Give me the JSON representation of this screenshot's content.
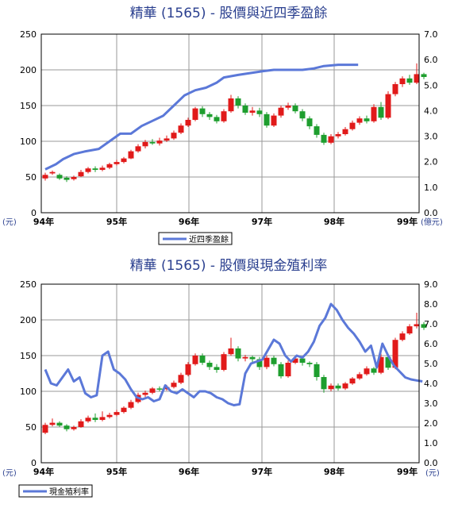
{
  "chart_data": [
    {
      "type": "candlestick+line",
      "title": "精華 (1565) - 股價與近四季盈餘",
      "x_labels": [
        "94年",
        "95年",
        "96年",
        "97年",
        "98年",
        "99年"
      ],
      "y_left": {
        "unit": "(元)",
        "range": [
          0,
          250
        ],
        "ticks": [
          "0",
          "50",
          "100",
          "150",
          "200",
          "250"
        ]
      },
      "y_right": {
        "unit": "(億元)",
        "range": [
          0,
          7
        ],
        "ticks": [
          "0.0",
          "1.0",
          "2.0",
          "3.0",
          "4.0",
          "5.0",
          "6.0",
          "7.0"
        ]
      },
      "legend": "近四季盈餘",
      "colors": {
        "up": "#e11a1a",
        "down": "#1e9e2e",
        "line": "#5b78d8"
      },
      "line_series": {
        "name": "近四季盈餘",
        "points": [
          [
            0.0,
            1.7
          ],
          [
            1.5,
            1.9
          ],
          [
            2.5,
            2.1
          ],
          [
            4.0,
            2.3
          ],
          [
            5.5,
            2.4
          ],
          [
            7.5,
            2.5
          ],
          [
            9.0,
            2.8
          ],
          [
            10.5,
            3.1
          ],
          [
            12.0,
            3.1
          ],
          [
            13.5,
            3.4
          ],
          [
            15.0,
            3.6
          ],
          [
            16.5,
            3.8
          ],
          [
            18.0,
            4.2
          ],
          [
            19.5,
            4.6
          ],
          [
            21.0,
            4.8
          ],
          [
            22.5,
            4.9
          ],
          [
            24.0,
            5.1
          ],
          [
            25.0,
            5.3
          ],
          [
            27.0,
            5.4
          ],
          [
            30.5,
            5.55
          ],
          [
            32.0,
            5.6
          ],
          [
            34.0,
            5.6
          ],
          [
            36.0,
            5.6
          ],
          [
            37.5,
            5.65
          ],
          [
            39.0,
            5.75
          ],
          [
            41.0,
            5.8
          ],
          [
            42.5,
            5.8
          ],
          [
            43.8,
            5.8
          ]
        ]
      },
      "candles": [
        [
          0,
          48,
          53,
          45,
          56
        ],
        [
          1,
          55,
          57,
          53,
          59
        ],
        [
          2,
          53,
          48,
          46,
          55
        ],
        [
          3,
          49,
          46,
          43,
          51
        ],
        [
          4,
          47,
          50,
          45,
          52
        ],
        [
          5,
          51,
          57,
          50,
          60
        ],
        [
          6,
          57,
          62,
          55,
          64
        ],
        [
          7,
          62,
          60,
          57,
          65
        ],
        [
          8,
          60,
          63,
          58,
          66
        ],
        [
          9,
          63,
          68,
          61,
          70
        ],
        [
          10,
          68,
          71,
          66,
          74
        ],
        [
          11,
          71,
          76,
          69,
          78
        ],
        [
          12,
          76,
          86,
          75,
          88
        ],
        [
          13,
          86,
          93,
          84,
          96
        ],
        [
          14,
          93,
          99,
          90,
          102
        ],
        [
          15,
          99,
          97,
          95,
          103
        ],
        [
          16,
          97,
          101,
          94,
          105
        ],
        [
          17,
          101,
          104,
          99,
          108
        ],
        [
          18,
          104,
          112,
          102,
          115
        ],
        [
          19,
          112,
          122,
          110,
          125
        ],
        [
          20,
          122,
          130,
          120,
          133
        ],
        [
          21,
          130,
          146,
          128,
          148
        ],
        [
          22,
          146,
          138,
          134,
          149
        ],
        [
          23,
          138,
          134,
          130,
          141
        ],
        [
          24,
          134,
          128,
          125,
          137
        ],
        [
          25,
          128,
          142,
          126,
          145
        ],
        [
          26,
          142,
          160,
          140,
          165
        ],
        [
          27,
          160,
          150,
          146,
          163
        ],
        [
          28,
          150,
          140,
          137,
          153
        ],
        [
          29,
          140,
          143,
          136,
          148
        ],
        [
          30,
          143,
          138,
          134,
          147
        ],
        [
          31,
          138,
          122,
          119,
          141
        ],
        [
          32,
          122,
          136,
          120,
          139
        ],
        [
          33,
          136,
          147,
          133,
          150
        ],
        [
          34,
          147,
          150,
          144,
          154
        ],
        [
          35,
          150,
          142,
          139,
          153
        ],
        [
          36,
          142,
          132,
          128,
          145
        ],
        [
          37,
          132,
          121,
          117,
          135
        ],
        [
          38,
          121,
          109,
          105,
          124
        ],
        [
          39,
          109,
          98,
          95,
          112
        ],
        [
          40,
          98,
          107,
          96,
          110
        ],
        [
          41,
          107,
          110,
          104,
          113
        ],
        [
          42,
          110,
          117,
          108,
          120
        ],
        [
          43,
          117,
          126,
          115,
          129
        ],
        [
          44,
          126,
          132,
          123,
          135
        ],
        [
          45,
          132,
          128,
          125,
          136
        ],
        [
          46,
          128,
          148,
          126,
          152
        ],
        [
          47,
          148,
          133,
          130,
          155
        ],
        [
          48,
          133,
          166,
          131,
          170
        ],
        [
          49,
          166,
          180,
          163,
          183
        ],
        [
          50,
          180,
          188,
          176,
          191
        ],
        [
          51,
          188,
          182,
          179,
          193
        ],
        [
          52,
          182,
          194,
          180,
          209
        ],
        [
          53,
          194,
          190,
          187,
          196
        ]
      ]
    },
    {
      "type": "candlestick+line",
      "title": "精華 (1565) - 股價與現金殖利率",
      "x_labels": [
        "94年",
        "95年",
        "96年",
        "97年",
        "98年",
        "99年"
      ],
      "y_left": {
        "unit": "(元)",
        "range": [
          0,
          250
        ],
        "ticks": [
          "0",
          "50",
          "100",
          "150",
          "200",
          "250"
        ]
      },
      "y_right": {
        "unit": "(元)",
        "range": [
          0,
          9
        ],
        "ticks": [
          "0.0",
          "1.0",
          "2.0",
          "3.0",
          "4.0",
          "5.0",
          "6.0",
          "7.0",
          "8.0",
          "9.0"
        ]
      },
      "legend": "現金殖利率",
      "colors": {
        "up": "#e11a1a",
        "down": "#1e9e2e",
        "line": "#5b78d8"
      },
      "line_series": {
        "name": "現金殖利率",
        "points": [
          [
            0.0,
            4.7
          ],
          [
            0.8,
            4.0
          ],
          [
            1.6,
            3.9
          ],
          [
            2.4,
            4.3
          ],
          [
            3.2,
            4.7
          ],
          [
            4.0,
            4.1
          ],
          [
            4.8,
            4.3
          ],
          [
            5.6,
            3.5
          ],
          [
            6.4,
            3.3
          ],
          [
            7.2,
            3.4
          ],
          [
            8.0,
            5.4
          ],
          [
            8.8,
            5.6
          ],
          [
            9.6,
            4.7
          ],
          [
            10.4,
            4.5
          ],
          [
            11.2,
            4.2
          ],
          [
            12.0,
            3.7
          ],
          [
            12.8,
            3.3
          ],
          [
            13.6,
            3.2
          ],
          [
            14.4,
            3.3
          ],
          [
            15.2,
            3.1
          ],
          [
            16.0,
            3.2
          ],
          [
            16.8,
            3.9
          ],
          [
            17.6,
            3.6
          ],
          [
            18.4,
            3.5
          ],
          [
            19.2,
            3.7
          ],
          [
            20.0,
            3.5
          ],
          [
            20.8,
            3.3
          ],
          [
            21.6,
            3.6
          ],
          [
            22.4,
            3.6
          ],
          [
            23.2,
            3.5
          ],
          [
            24.0,
            3.3
          ],
          [
            24.8,
            3.2
          ],
          [
            25.6,
            3.0
          ],
          [
            26.4,
            2.9
          ],
          [
            27.2,
            2.95
          ],
          [
            28.0,
            4.5
          ],
          [
            28.8,
            5.0
          ],
          [
            29.6,
            5.1
          ],
          [
            30.4,
            5.2
          ],
          [
            31.2,
            5.7
          ],
          [
            32.0,
            6.2
          ],
          [
            32.8,
            6.0
          ],
          [
            33.6,
            5.4
          ],
          [
            34.4,
            5.1
          ],
          [
            35.2,
            5.4
          ],
          [
            36.0,
            5.3
          ],
          [
            36.8,
            5.6
          ],
          [
            37.6,
            6.1
          ],
          [
            38.4,
            6.9
          ],
          [
            39.2,
            7.3
          ],
          [
            40.0,
            8.0
          ],
          [
            40.8,
            7.7
          ],
          [
            41.6,
            7.2
          ],
          [
            42.4,
            6.8
          ],
          [
            43.2,
            6.5
          ],
          [
            44.0,
            6.1
          ],
          [
            44.8,
            5.6
          ],
          [
            45.6,
            5.9
          ],
          [
            46.4,
            4.8
          ],
          [
            47.2,
            6.0
          ],
          [
            48.0,
            5.4
          ],
          [
            48.8,
            4.9
          ],
          [
            49.6,
            4.6
          ],
          [
            50.4,
            4.3
          ],
          [
            51.2,
            4.2
          ],
          [
            52.0,
            4.15
          ],
          [
            52.8,
            4.1
          ]
        ]
      },
      "candles": [
        [
          0,
          42,
          53,
          40,
          56
        ],
        [
          1,
          53,
          56,
          51,
          62
        ],
        [
          2,
          56,
          52,
          50,
          58
        ],
        [
          3,
          52,
          47,
          44,
          54
        ],
        [
          4,
          47,
          50,
          45,
          52
        ],
        [
          5,
          50,
          58,
          49,
          61
        ],
        [
          6,
          58,
          63,
          56,
          66
        ],
        [
          7,
          63,
          60,
          57,
          69
        ],
        [
          8,
          60,
          64,
          58,
          72
        ],
        [
          9,
          64,
          67,
          62,
          70
        ],
        [
          10,
          67,
          71,
          65,
          74
        ],
        [
          11,
          71,
          77,
          69,
          79
        ],
        [
          12,
          77,
          85,
          75,
          88
        ],
        [
          13,
          85,
          95,
          83,
          98
        ],
        [
          14,
          95,
          98,
          92,
          101
        ],
        [
          15,
          98,
          104,
          96,
          106
        ],
        [
          16,
          104,
          103,
          100,
          107
        ],
        [
          17,
          103,
          106,
          101,
          109
        ],
        [
          18,
          106,
          112,
          104,
          115
        ],
        [
          19,
          112,
          123,
          110,
          126
        ],
        [
          20,
          123,
          138,
          121,
          141
        ],
        [
          21,
          138,
          150,
          136,
          153
        ],
        [
          22,
          150,
          140,
          137,
          153
        ],
        [
          23,
          140,
          134,
          130,
          143
        ],
        [
          24,
          134,
          130,
          126,
          138
        ],
        [
          25,
          130,
          152,
          128,
          155
        ],
        [
          26,
          152,
          160,
          150,
          175
        ],
        [
          27,
          160,
          146,
          142,
          163
        ],
        [
          28,
          146,
          148,
          142,
          151
        ],
        [
          29,
          148,
          145,
          141,
          150
        ],
        [
          30,
          145,
          134,
          130,
          148
        ],
        [
          31,
          134,
          147,
          131,
          150
        ],
        [
          32,
          147,
          138,
          135,
          150
        ],
        [
          33,
          138,
          121,
          118,
          141
        ],
        [
          34,
          121,
          140,
          119,
          143
        ],
        [
          35,
          140,
          146,
          138,
          149
        ],
        [
          36,
          146,
          140,
          136,
          149
        ],
        [
          37,
          140,
          138,
          134,
          142
        ],
        [
          38,
          138,
          120,
          115,
          141
        ],
        [
          39,
          120,
          103,
          98,
          123
        ],
        [
          40,
          103,
          108,
          100,
          111
        ],
        [
          41,
          108,
          104,
          101,
          111
        ],
        [
          42,
          104,
          111,
          102,
          113
        ],
        [
          43,
          111,
          118,
          109,
          120
        ],
        [
          44,
          118,
          124,
          116,
          127
        ],
        [
          45,
          124,
          132,
          122,
          135
        ],
        [
          46,
          132,
          126,
          123,
          134
        ],
        [
          47,
          126,
          148,
          124,
          153
        ],
        [
          48,
          148,
          133,
          130,
          152
        ],
        [
          49,
          133,
          172,
          131,
          175
        ],
        [
          50,
          172,
          181,
          170,
          184
        ],
        [
          51,
          181,
          191,
          179,
          194
        ],
        [
          52,
          191,
          194,
          188,
          210
        ],
        [
          53,
          194,
          189,
          186,
          197
        ]
      ]
    }
  ]
}
